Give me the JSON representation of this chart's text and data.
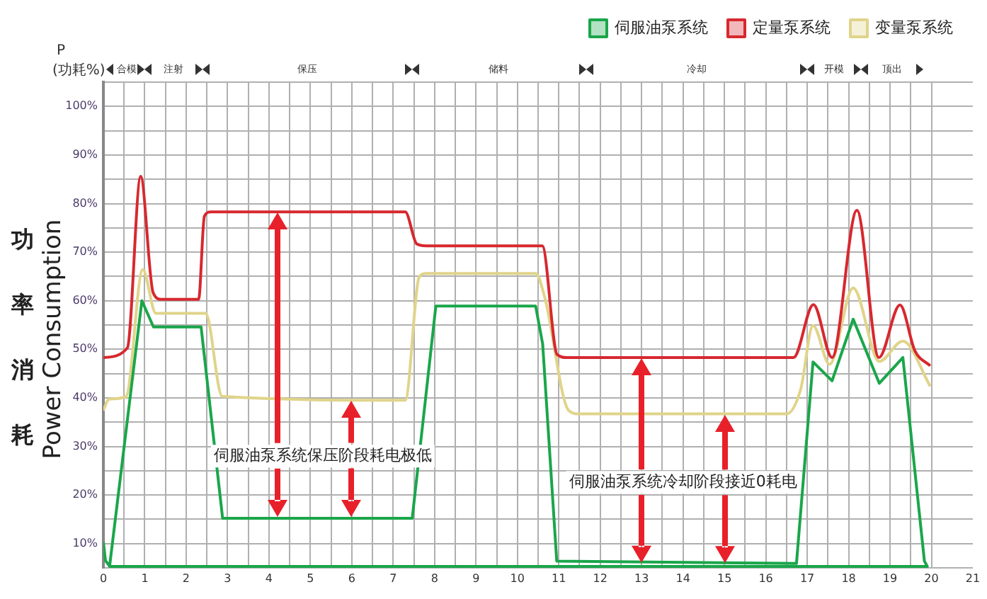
{
  "chart_data": {
    "type": "line",
    "ylabel": "Power Consumption",
    "annotations": [
      "功率消耗",
      "P\n(功耗%)",
      "伺服油泵系统保压阶段耗电极低",
      "伺服油泵系统冷却阶段接近0耗电",
      "合模",
      "注射",
      "保压",
      "储料",
      "冷却",
      "开模",
      "顶出"
    ],
    "series": [
      {
        "name": "伺服油泵系统",
        "color": "#1aa64a",
        "x": [
          0,
          0.05,
          0.15,
          0.93,
          1.21,
          2.36,
          2.88,
          7.46,
          8.03,
          10.44,
          10.61,
          10.95,
          16.74,
          17.14,
          17.6,
          18.11,
          18.74,
          19.31,
          19.83,
          19.9,
          0.15
        ],
        "values": [
          10.3,
          6.5,
          5.3,
          60,
          54.6,
          54.6,
          15.2,
          15.2,
          58.9,
          58.9,
          51.1,
          6.4,
          5.9,
          47.4,
          43.5,
          56.2,
          43,
          48.3,
          6.4,
          5.3,
          5.3
        ]
      },
      {
        "name": "定量泵系统",
        "color": "#d7282f",
        "x": [
          0,
          0.58,
          0.9,
          1.2,
          1.4,
          2.3,
          2.44,
          2.6,
          7.29,
          7.57,
          7.8,
          10.6,
          10.96,
          11.2,
          16.67,
          17.15,
          17.6,
          18.2,
          18.73,
          19.24,
          19.6,
          19.97
        ],
        "values": [
          48.3,
          50.3,
          85.6,
          61.7,
          60.3,
          60.3,
          77.4,
          78.3,
          78.3,
          71.7,
          71.3,
          71.3,
          48.9,
          48.3,
          48.3,
          59.2,
          48.3,
          78.6,
          48.3,
          59.1,
          49.7,
          46.6
        ]
      },
      {
        "name": "变量泵系统",
        "color": "#e0d48a",
        "x": [
          0,
          0.13,
          0.55,
          0.95,
          1.27,
          2.47,
          2.87,
          7.29,
          7.63,
          7.8,
          10.44,
          10.66,
          11.24,
          11.5,
          16.5,
          16.84,
          17.14,
          17.54,
          18.11,
          18.74,
          19.31,
          19.97
        ],
        "values": [
          37.4,
          39.7,
          40.3,
          66.4,
          57.4,
          57.4,
          40.3,
          39.5,
          64.9,
          65.6,
          65.6,
          60.7,
          37.4,
          36.7,
          36.7,
          41.7,
          54.9,
          46.9,
          62.6,
          47.5,
          51.7,
          42.4
        ]
      }
    ],
    "xlim": [
      0,
      21
    ],
    "xticks": [
      0,
      {
        "value": 0.5,
        "label": null
      },
      1,
      {
        "value": 1.5,
        "label": null
      },
      2,
      {
        "value": 2.5,
        "label": null
      },
      3,
      {
        "value": 3.5,
        "label": null
      },
      4,
      {
        "value": 4.5,
        "label": null
      },
      5,
      {
        "value": 5.5,
        "label": null
      },
      6,
      {
        "value": 6.5,
        "label": null
      },
      7,
      {
        "value": 7.5,
        "label": null
      },
      8,
      {
        "value": 8.5,
        "label": null
      },
      9,
      {
        "value": 9.5,
        "label": null
      },
      10,
      {
        "value": 10.5,
        "label": null
      },
      11,
      {
        "value": 11.5,
        "label": null
      },
      12,
      {
        "value": 12.5,
        "label": null
      },
      13,
      {
        "value": 13.5,
        "label": null
      },
      14,
      {
        "value": 14.5,
        "label": null
      },
      15,
      {
        "value": 15.5,
        "label": null
      },
      16,
      {
        "value": 16.5,
        "label": null
      },
      17,
      {
        "value": 17.5,
        "label": null
      },
      18,
      {
        "value": 18.5,
        "label": null
      },
      19,
      {
        "value": 19.5,
        "label": null
      },
      20,
      21
    ],
    "ylim": [
      5,
      105
    ],
    "yticks": [
      {
        "value": 5,
        "label": null
      },
      {
        "value": 10,
        "label": "10%"
      },
      {
        "value": 15,
        "label": null
      },
      {
        "value": 20,
        "label": "20%"
      },
      {
        "value": 25,
        "label": null
      },
      {
        "value": 30,
        "label": "30%"
      },
      {
        "value": 35,
        "label": null
      },
      {
        "value": 40,
        "label": "40%"
      },
      {
        "value": 45,
        "label": null
      },
      {
        "value": 50,
        "label": "50%"
      },
      {
        "value": 55,
        "label": null
      },
      {
        "value": 60,
        "label": "60%"
      },
      {
        "value": 65,
        "label": null
      },
      {
        "value": 70,
        "label": "70%"
      },
      {
        "value": 75,
        "label": null
      },
      {
        "value": 80,
        "label": "80%"
      },
      {
        "value": 85,
        "label": null
      },
      {
        "value": 90,
        "label": "90%"
      },
      {
        "value": 95,
        "label": null
      },
      {
        "value": 100,
        "label": "100%"
      },
      {
        "value": 105,
        "label": null
      }
    ],
    "grid": true,
    "legend": "top right",
    "marker": "none",
    "line_style": "solid"
  }
}
